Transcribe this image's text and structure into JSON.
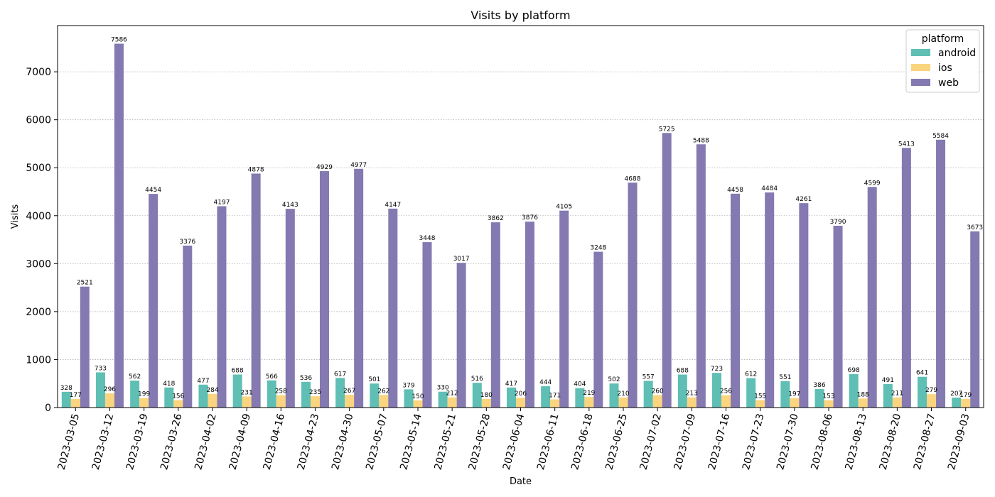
{
  "chart_data": {
    "type": "bar",
    "title": "Visits by platform",
    "xlabel": "Date",
    "ylabel": "Visits",
    "ylim": [
      0,
      7964
    ],
    "yticks": [
      0,
      1000,
      2000,
      3000,
      4000,
      5000,
      6000,
      7000
    ],
    "grid": "horizontal dotted",
    "legend": {
      "title": "platform",
      "placement": "top-right"
    },
    "categories": [
      "2023-03-05",
      "2023-03-12",
      "2023-03-19",
      "2023-03-26",
      "2023-04-02",
      "2023-04-09",
      "2023-04-16",
      "2023-04-23",
      "2023-04-30",
      "2023-05-07",
      "2023-05-14",
      "2023-05-21",
      "2023-05-28",
      "2023-06-04",
      "2023-06-11",
      "2023-06-18",
      "2023-06-25",
      "2023-07-02",
      "2023-07-09",
      "2023-07-16",
      "2023-07-23",
      "2023-07-30",
      "2023-08-06",
      "2023-08-13",
      "2023-08-20",
      "2023-08-27",
      "2023-09-03"
    ],
    "series": [
      {
        "name": "android",
        "color": "#5fbfb4",
        "values": [
          328,
          733,
          562,
          418,
          477,
          688,
          566,
          536,
          617,
          501,
          379,
          330,
          516,
          417,
          444,
          404,
          502,
          557,
          688,
          723,
          612,
          551,
          386,
          698,
          491,
          641,
          207
        ]
      },
      {
        "name": "ios",
        "color": "#fbd47f",
        "values": [
          177,
          296,
          199,
          156,
          284,
          231,
          258,
          235,
          267,
          262,
          150,
          212,
          180,
          206,
          171,
          219,
          210,
          260,
          213,
          256,
          155,
          197,
          153,
          188,
          211,
          279,
          179
        ]
      },
      {
        "name": "web",
        "color": "#8479b0",
        "values": [
          2521,
          7586,
          4454,
          3376,
          4197,
          4878,
          4143,
          4929,
          4977,
          4147,
          3448,
          3017,
          3862,
          3876,
          4105,
          3248,
          4688,
          5725,
          5488,
          4458,
          4484,
          4261,
          3790,
          4599,
          5413,
          5584,
          3673
        ]
      }
    ]
  }
}
